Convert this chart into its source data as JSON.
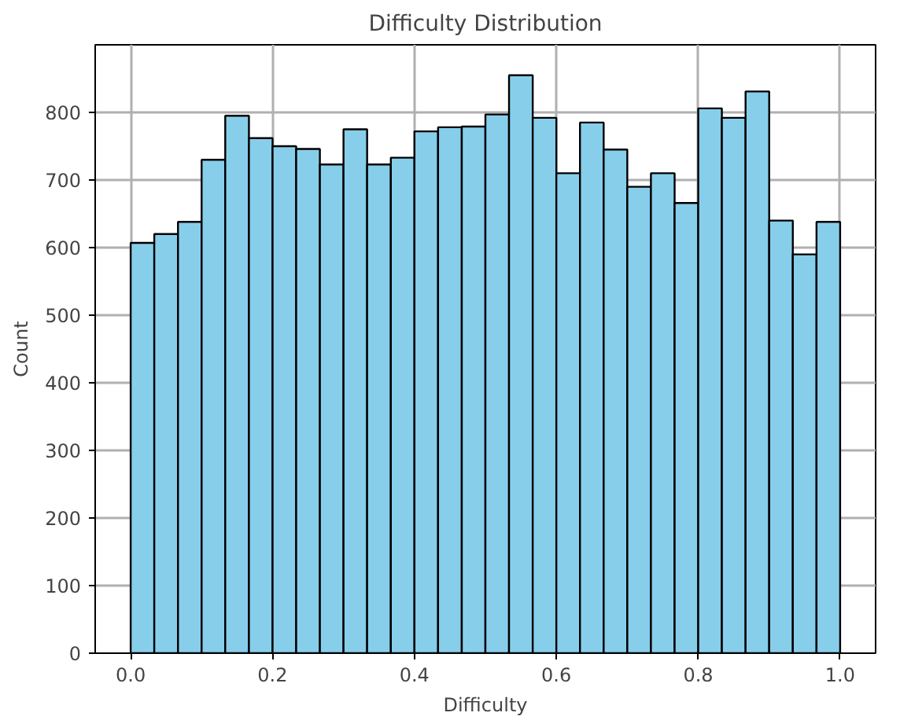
{
  "chart_data": {
    "type": "histogram",
    "title": "Difficulty Distribution",
    "xlabel": "Difficulty",
    "ylabel": "Count",
    "color": "#87ceeb",
    "bins": [
      0,
      0.0333,
      0.0667,
      0.1,
      0.1333,
      0.1667,
      0.2,
      0.2333,
      0.2667,
      0.3,
      0.3333,
      0.3667,
      0.4,
      0.4333,
      0.4667,
      0.5,
      0.5333,
      0.5667,
      0.6,
      0.6333,
      0.6667,
      0.7,
      0.7333,
      0.7667,
      0.8,
      0.8333,
      0.8667,
      0.9,
      0.9333,
      0.9667,
      1
    ],
    "values": [
      607,
      620,
      638,
      730,
      795,
      762,
      750,
      746,
      723,
      775,
      723,
      733,
      772,
      778,
      779,
      797,
      855,
      792,
      710,
      785,
      745,
      690,
      710,
      666,
      806,
      792,
      831,
      640,
      590,
      638
    ],
    "xlim": [
      -0.05,
      1.05
    ],
    "ylim": [
      0,
      900
    ],
    "xticks": [
      {
        "value": 0,
        "label": "0.0"
      },
      0.2,
      0.4,
      0.6,
      0.8,
      {
        "value": 1,
        "label": "1.0"
      }
    ],
    "yticks": [
      0,
      100,
      200,
      300,
      400,
      500,
      600,
      700,
      800
    ],
    "grid": true
  }
}
